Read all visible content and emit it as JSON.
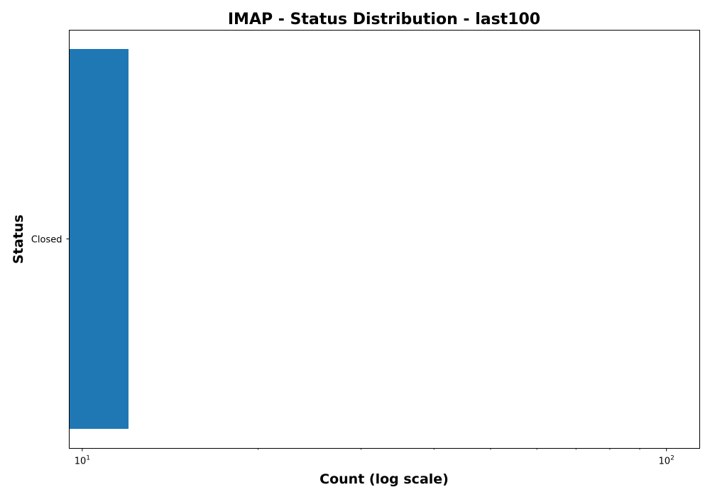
{
  "chart_data": {
    "type": "bar",
    "orientation": "horizontal",
    "title": "IMAP - Status Distribution - last100",
    "xlabel": "Count (log scale)",
    "ylabel": "Status",
    "x_scale": "log",
    "xlim": [
      9.5,
      114
    ],
    "categories": [
      "Closed"
    ],
    "values": [
      12
    ],
    "x_ticks": [
      {
        "value": 10,
        "base": "10",
        "exponent": "1"
      },
      {
        "value": 100,
        "base": "10",
        "exponent": "2"
      }
    ],
    "bar_color": "#1f77b4",
    "grid": false,
    "legend": "none"
  }
}
